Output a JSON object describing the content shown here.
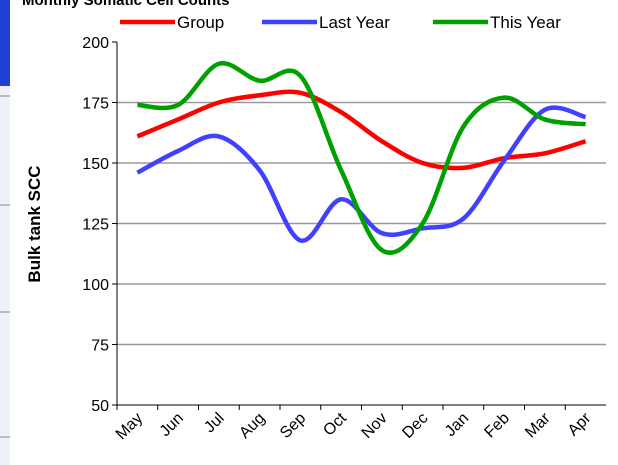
{
  "chart_data": {
    "type": "line",
    "title": "Monthly Somatic Cell Counts",
    "y_label": "Bulk tank SCC",
    "categories": [
      "May",
      "Jun",
      "Jul",
      "Aug",
      "Sep",
      "Oct",
      "Nov",
      "Dec",
      "Jan",
      "Feb",
      "Mar",
      "Apr"
    ],
    "series": [
      {
        "name": "Group",
        "color": "#ff0000",
        "values": [
          161,
          168,
          175,
          178,
          179,
          171,
          159,
          150,
          148,
          152,
          154,
          159
        ]
      },
      {
        "name": "Last Year",
        "color": "#4040ff",
        "values": [
          146,
          155,
          161,
          147,
          118,
          135,
          121,
          123,
          127,
          151,
          172,
          169
        ]
      },
      {
        "name": "This Year",
        "color": "#00a000",
        "values": [
          174,
          174,
          191,
          184,
          186,
          147,
          114,
          125,
          165,
          177,
          168,
          166
        ]
      }
    ],
    "ylim": [
      50,
      200
    ],
    "yticks": [
      50,
      75,
      100,
      125,
      150,
      175,
      200
    ],
    "grid": true,
    "legend": "top"
  }
}
